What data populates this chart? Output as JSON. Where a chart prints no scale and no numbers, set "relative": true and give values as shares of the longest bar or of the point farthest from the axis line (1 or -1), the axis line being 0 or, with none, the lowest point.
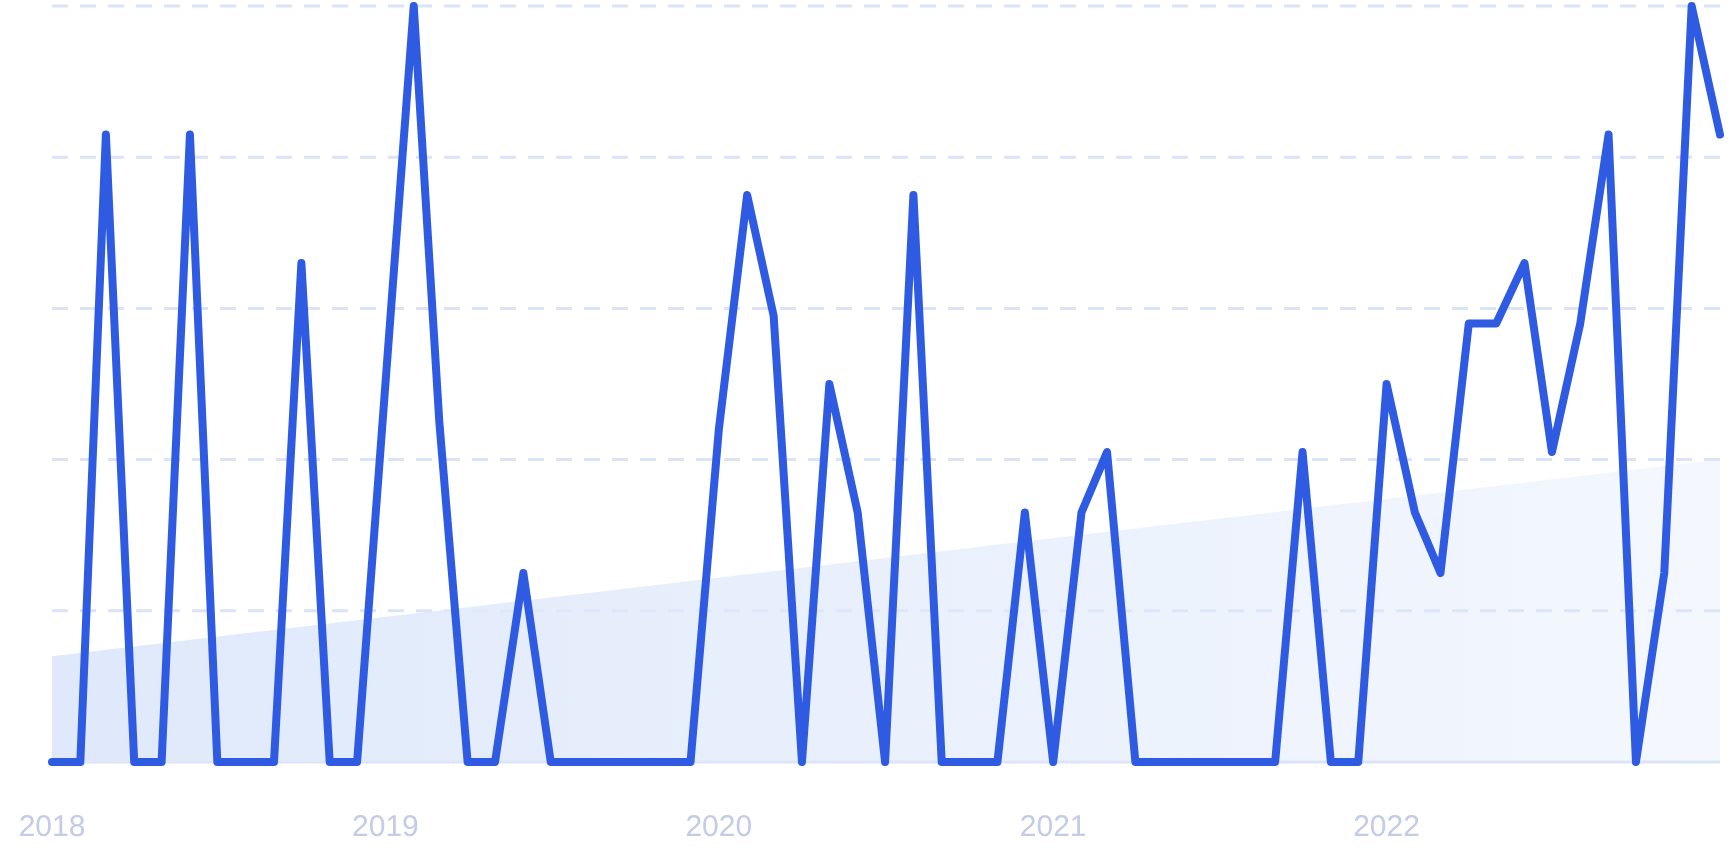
{
  "chart_data": {
    "type": "line",
    "relative": true,
    "grid": "y",
    "xlim": [
      "2018-01",
      "2023-01"
    ],
    "xticks": [
      {
        "value": "2018-01",
        "label": "2018"
      },
      {
        "value": "2019-01",
        "label": "2019"
      },
      {
        "value": "2020-01",
        "label": "2020"
      },
      {
        "value": "2021-01",
        "label": "2021"
      },
      {
        "value": "2022-01",
        "label": "2022"
      }
    ],
    "series": [
      {
        "type": "area",
        "color": "#dfe9fb",
        "x": [
          "2018-01",
          "2023-01"
        ],
        "values": [
          0.14,
          0.4
        ]
      },
      {
        "color": "#2f5be3",
        "x": [
          "2018-01",
          "2018-02",
          "2018-03",
          "2018-04",
          "2018-05",
          "2018-06",
          "2018-07",
          "2018-08",
          "2018-09",
          "2018-10",
          "2018-11",
          "2018-12",
          "2019-01",
          "2019-02",
          "2019-03",
          "2019-04",
          "2019-05",
          "2019-06",
          "2019-07",
          "2019-08",
          "2019-09",
          "2019-10",
          "2019-11",
          "2019-12",
          "2020-01",
          "2020-02",
          "2020-03",
          "2020-04",
          "2020-05",
          "2020-06",
          "2020-07",
          "2020-08",
          "2020-09",
          "2020-10",
          "2020-11",
          "2020-12",
          "2021-01",
          "2021-02",
          "2021-03",
          "2021-04",
          "2021-05",
          "2021-06",
          "2021-07",
          "2021-08",
          "2021-09",
          "2021-10",
          "2021-11",
          "2021-12",
          "2022-01",
          "2022-02",
          "2022-03",
          "2022-04",
          "2022-05",
          "2022-06",
          "2022-07",
          "2022-08",
          "2022-09",
          "2022-10",
          "2022-11",
          "2022-12",
          "2023-01"
        ],
        "values": [
          0,
          0,
          0.83,
          0,
          0,
          0.83,
          0,
          0,
          0,
          0.66,
          0,
          0,
          0.5,
          1,
          0.45,
          0,
          0,
          0.25,
          0,
          0,
          0,
          0,
          0,
          0,
          0.44,
          0.75,
          0.59,
          0,
          0.5,
          0.33,
          0,
          0.75,
          0,
          0,
          0,
          0.33,
          0,
          0.33,
          0.41,
          0,
          0,
          0,
          0,
          0,
          0,
          0.41,
          0,
          0,
          0.5,
          0.33,
          0.25,
          0.58,
          0.58,
          0.66,
          0.41,
          0.58,
          0.83,
          0,
          0.25,
          1,
          0.83
        ]
      }
    ]
  }
}
